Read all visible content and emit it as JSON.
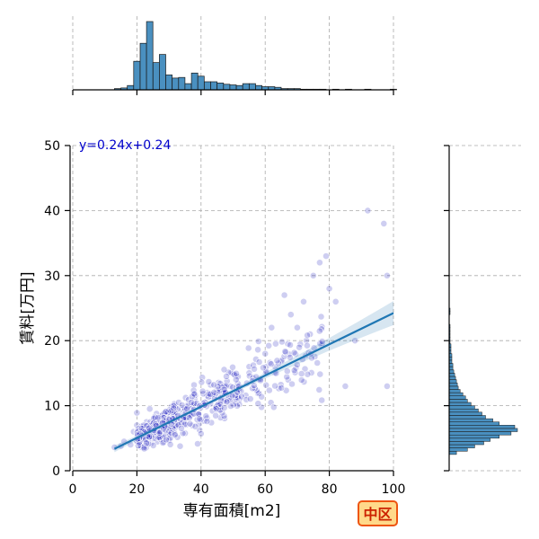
{
  "chart_data": {
    "type": "scatter",
    "title": "",
    "xlabel": "専有面積[m2]",
    "ylabel": "賃料[万円]",
    "xlim": [
      0,
      100
    ],
    "ylim": [
      0,
      50
    ],
    "x_ticks": [
      0,
      20,
      40,
      60,
      80,
      100
    ],
    "y_ticks": [
      0,
      10,
      20,
      30,
      40,
      50
    ],
    "grid": true,
    "regression": {
      "label": "y=0.24x+0.24",
      "slope": 0.24,
      "intercept": 0.24,
      "x_range": [
        13,
        100
      ],
      "color": "#1f77b4"
    },
    "point_color": "#2020c0",
    "badge": "中区",
    "anchor_points": [
      [
        13,
        3.6
      ],
      [
        15,
        3.8
      ],
      [
        16,
        4.5
      ],
      [
        18,
        4.0
      ],
      [
        19,
        6.0
      ],
      [
        20,
        7.0
      ],
      [
        20,
        8.9
      ],
      [
        21,
        5.5
      ],
      [
        22,
        4.2
      ],
      [
        23,
        7.5
      ],
      [
        24,
        9.5
      ],
      [
        25,
        6.0
      ],
      [
        26,
        8.0
      ],
      [
        28,
        5.0
      ],
      [
        30,
        7.0
      ],
      [
        32,
        10.0
      ],
      [
        35,
        8.0
      ],
      [
        38,
        11.0
      ],
      [
        40,
        10.0
      ],
      [
        42,
        12.0
      ],
      [
        45,
        12.5
      ],
      [
        48,
        13.0
      ],
      [
        50,
        15.0
      ],
      [
        52,
        11.0
      ],
      [
        55,
        16.0
      ],
      [
        58,
        14.0
      ],
      [
        60,
        18.0
      ],
      [
        62,
        22.0
      ],
      [
        65,
        17.0
      ],
      [
        66,
        27.0
      ],
      [
        68,
        24.0
      ],
      [
        70,
        22.0
      ],
      [
        72,
        26.0
      ],
      [
        74,
        21.0
      ],
      [
        75,
        30.0
      ],
      [
        77,
        32.0
      ],
      [
        79,
        33.0
      ],
      [
        80,
        28.0
      ],
      [
        82,
        26.0
      ],
      [
        85,
        13.0
      ],
      [
        88,
        20.0
      ],
      [
        92,
        40.0
      ],
      [
        97,
        38.0
      ],
      [
        98,
        30.0
      ],
      [
        98,
        13.0
      ]
    ],
    "top_histogram": {
      "bin_start": 13,
      "bin_width": 2,
      "counts": [
        2,
        3,
        7,
        46,
        75,
        110,
        44,
        57,
        24,
        19,
        20,
        10,
        27,
        22,
        13,
        13,
        11,
        9,
        8,
        7,
        10,
        10,
        7,
        5,
        5,
        4,
        2,
        2,
        2,
        1,
        1,
        1,
        1,
        0,
        1,
        0,
        1,
        0,
        0,
        1,
        0,
        0,
        0,
        1
      ]
    },
    "right_histogram": {
      "bin_start": 2.5,
      "bin_width": 0.5,
      "counts": [
        8,
        20,
        28,
        38,
        45,
        55,
        68,
        75,
        72,
        55,
        48,
        40,
        36,
        32,
        28,
        24,
        20,
        18,
        15,
        12,
        10,
        9,
        8,
        7,
        6,
        5,
        4,
        4,
        3,
        3,
        3,
        2,
        2,
        2,
        1,
        1,
        1,
        1,
        1,
        1,
        0,
        0,
        0,
        1,
        1
      ]
    }
  }
}
